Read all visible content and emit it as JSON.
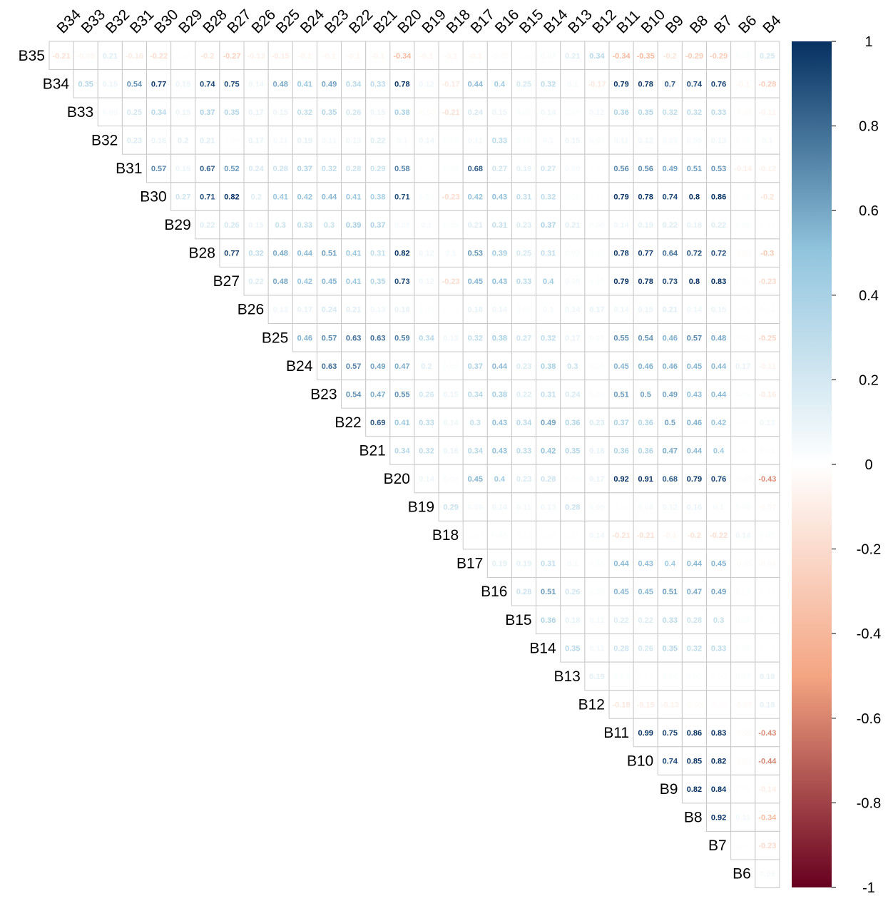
{
  "chart_data": {
    "type": "heatmap",
    "variables": [
      "B35",
      "B34",
      "B33",
      "B32",
      "B31",
      "B30",
      "B29",
      "B28",
      "B27",
      "B26",
      "B25",
      "B24",
      "B23",
      "B22",
      "B21",
      "B20",
      "B19",
      "B18",
      "B17",
      "B16",
      "B15",
      "B14",
      "B13",
      "B12",
      "B11",
      "B10",
      "B9",
      "B8",
      "B7",
      "B6",
      "B4"
    ],
    "rows": [
      [
        "-0.21",
        "-0.09",
        "0.21",
        "-0.16",
        "-0.22",
        "0.03",
        "-0.2",
        "-0.27",
        "-0.13",
        "-0.15",
        "-0.1",
        "-0.1",
        "-0.1",
        "-0.1",
        "-0.34",
        "-0.1",
        "-0.1",
        "-0.1",
        "-0.05",
        "-0.02",
        "0.07",
        "0.21",
        "0.34",
        "-0.34",
        "-0.35",
        "-0.2",
        "-0.29",
        "-0.29",
        "0.05",
        "0.25"
      ],
      [
        "0.35",
        "0.15",
        "0.54",
        "0.77",
        "0.15",
        "0.74",
        "0.75",
        "0.14",
        "0.48",
        "0.41",
        "0.49",
        "0.34",
        "0.33",
        "0.78",
        "0.12",
        "-0.17",
        "0.44",
        "0.4",
        "0.25",
        "0.32",
        "0.1",
        "-0.17",
        "0.79",
        "0.78",
        "0.7",
        "0.74",
        "0.76",
        "-0.1",
        "-0.28"
      ],
      [
        "0.09",
        "0.25",
        "0.34",
        "0.15",
        "0.37",
        "0.35",
        "0.17",
        "0.15",
        "0.32",
        "0.35",
        "0.26",
        "0.15",
        "0.38",
        "-0.05",
        "-0.21",
        "0.24",
        "0.15",
        "0.05",
        "0.14",
        "0.05",
        "0.12",
        "0.36",
        "0.35",
        "0.32",
        "0.32",
        "0.33",
        "-0.05",
        "-0.11"
      ],
      [
        "0.23",
        "0.16",
        "0.2",
        "0.21",
        "0.04",
        "0.17",
        "0.11",
        "0.19",
        "0.11",
        "0.13",
        "0.22",
        "0.1",
        "0.14",
        "0.05",
        "0.11",
        "0.33",
        "0.05",
        "0.1",
        "0.15",
        "0.07",
        "0.11",
        "0.12",
        "0.09",
        "0.09",
        "0.13",
        "0.04",
        "0.1"
      ],
      [
        "0.57",
        "0.15",
        "0.67",
        "0.52",
        "0.24",
        "0.28",
        "0.37",
        "0.32",
        "0.28",
        "0.29",
        "0.58",
        "0.02",
        "0.05",
        "0.68",
        "0.27",
        "0.19",
        "0.27",
        "0.09",
        "0.03",
        "0.56",
        "0.56",
        "0.49",
        "0.51",
        "0.53",
        "-0.14",
        "-0.12"
      ],
      [
        "0.27",
        "0.71",
        "0.82",
        "0.2",
        "0.41",
        "0.42",
        "0.44",
        "0.41",
        "0.38",
        "0.71",
        "0.06",
        "-0.23",
        "0.42",
        "0.43",
        "0.31",
        "0.32",
        "0.05",
        "0.02",
        "0.79",
        "0.78",
        "0.74",
        "0.8",
        "0.86",
        "0.03",
        "-0.2"
      ],
      [
        "0.22",
        "0.26",
        "0.15",
        "0.3",
        "0.33",
        "0.3",
        "0.39",
        "0.37",
        "0.08",
        "0.1",
        "0.05",
        "0.21",
        "0.31",
        "0.23",
        "0.37",
        "0.21",
        "0.08",
        "0.14",
        "0.19",
        "0.22",
        "0.18",
        "0.22",
        "0.05",
        "0.02"
      ],
      [
        "0.77",
        "0.32",
        "0.48",
        "0.44",
        "0.51",
        "0.41",
        "0.31",
        "0.82",
        "0.12",
        "0.1",
        "0.53",
        "0.39",
        "0.25",
        "0.31",
        "0.07",
        "0.05",
        "0.78",
        "0.77",
        "0.64",
        "0.72",
        "0.72",
        "-0.05",
        "-0.3"
      ],
      [
        "0.22",
        "0.48",
        "0.42",
        "0.45",
        "0.41",
        "0.35",
        "0.73",
        "0.12",
        "-0.23",
        "0.45",
        "0.43",
        "0.33",
        "0.4",
        "0.09",
        "0.05",
        "0.79",
        "0.78",
        "0.73",
        "0.8",
        "0.83",
        "0.02",
        "-0.23"
      ],
      [
        "0.13",
        "0.17",
        "0.24",
        "0.21",
        "0.13",
        "0.18",
        "0.05",
        "0.04",
        "0.18",
        "0.14",
        "0.05",
        "0.1",
        "0.14",
        "0.17",
        "0.14",
        "0.15",
        "0.21",
        "0.14",
        "0.15",
        "0.02",
        "0.04"
      ],
      [
        "0.46",
        "0.57",
        "0.63",
        "0.63",
        "0.59",
        "0.34",
        "0.13",
        "0.32",
        "0.38",
        "0.27",
        "0.32",
        "0.17",
        "0.07",
        "0.55",
        "0.54",
        "0.46",
        "0.57",
        "0.48",
        "0.03",
        "-0.25"
      ],
      [
        "0.63",
        "0.57",
        "0.49",
        "0.47",
        "0.2",
        "0.05",
        "0.37",
        "0.44",
        "0.23",
        "0.38",
        "0.3",
        "0.05",
        "0.45",
        "0.46",
        "0.46",
        "0.45",
        "0.44",
        "0.17",
        "-0.11"
      ],
      [
        "0.54",
        "0.47",
        "0.55",
        "0.26",
        "0.15",
        "0.34",
        "0.38",
        "0.22",
        "0.31",
        "0.24",
        "0.06",
        "0.51",
        "0.5",
        "0.49",
        "0.43",
        "0.44",
        "0.05",
        "-0.16"
      ],
      [
        "0.69",
        "0.41",
        "0.33",
        "0.14",
        "0.3",
        "0.43",
        "0.34",
        "0.49",
        "0.36",
        "0.23",
        "0.37",
        "0.36",
        "0.5",
        "0.46",
        "0.42",
        "0.02",
        "0.13"
      ],
      [
        "0.34",
        "0.32",
        "0.16",
        "0.34",
        "0.43",
        "0.33",
        "0.42",
        "0.35",
        "0.18",
        "0.36",
        "0.36",
        "0.47",
        "0.44",
        "0.4",
        "0.04",
        "0.05"
      ],
      [
        "0.14",
        "0.06",
        "0.45",
        "0.4",
        "0.23",
        "0.28",
        "0.05",
        "0.17",
        "0.92",
        "0.91",
        "0.68",
        "0.79",
        "0.76",
        "-0.05",
        "-0.43"
      ],
      [
        "0.29",
        "0.09",
        "0.14",
        "0.11",
        "0.13",
        "0.28",
        "0.09",
        "0.03",
        "0.08",
        "0.12",
        "0.16",
        "0.1",
        "0.06",
        "-0.07"
      ],
      [
        "0.03",
        "0.05",
        "0.03",
        "0.02",
        "0.02",
        "0.14",
        "-0.21",
        "-0.21",
        "-0.1",
        "-0.2",
        "-0.22",
        "0.14",
        "0.05"
      ],
      [
        "0.19",
        "0.19",
        "0.31",
        "0.1",
        "0.05",
        "0.44",
        "0.43",
        "0.4",
        "0.44",
        "0.45",
        "-0.05",
        "-0.06"
      ],
      [
        "0.28",
        "0.51",
        "0.26",
        "0.05",
        "0.45",
        "0.45",
        "0.51",
        "0.47",
        "0.49",
        "0.04",
        "0.03"
      ],
      [
        "0.36",
        "0.18",
        "0.11",
        "0.22",
        "0.22",
        "0.33",
        "0.28",
        "0.3",
        "0.05",
        "0.02"
      ],
      [
        "0.35",
        "0.11",
        "0.28",
        "0.26",
        "0.35",
        "0.32",
        "0.33",
        "0.05",
        "0.03"
      ],
      [
        "0.19",
        "0.05",
        "0.03",
        "0.06",
        "0.05",
        "0.02",
        "0.07",
        "0.18"
      ],
      [
        "-0.18",
        "-0.15",
        "-0.13",
        "-0.05",
        "-0.04",
        "-0.07",
        "0.18"
      ],
      [
        "0.99",
        "0.75",
        "0.86",
        "0.83",
        "-0.05",
        "-0.43"
      ],
      [
        "0.74",
        "0.85",
        "0.82",
        "-0.05",
        "-0.44"
      ],
      [
        "0.82",
        "0.84",
        "0.03",
        "-0.14"
      ],
      [
        "0.92",
        "0.11",
        "-0.34"
      ],
      [
        "0.04",
        "-0.23"
      ],
      [
        "0.09"
      ]
    ],
    "colorbar_ticks": [
      "1",
      "0.8",
      "0.6",
      "0.4",
      "0.2",
      "0",
      "-0.2",
      "-0.4",
      "-0.6",
      "-0.8",
      "-1"
    ],
    "color_scale": {
      "negative": "#67001f",
      "mid_neg": "#f4a582",
      "zero": "#ffffff",
      "mid_pos": "#92c5de",
      "positive": "#053061"
    },
    "value_range": [
      -1,
      1
    ]
  }
}
